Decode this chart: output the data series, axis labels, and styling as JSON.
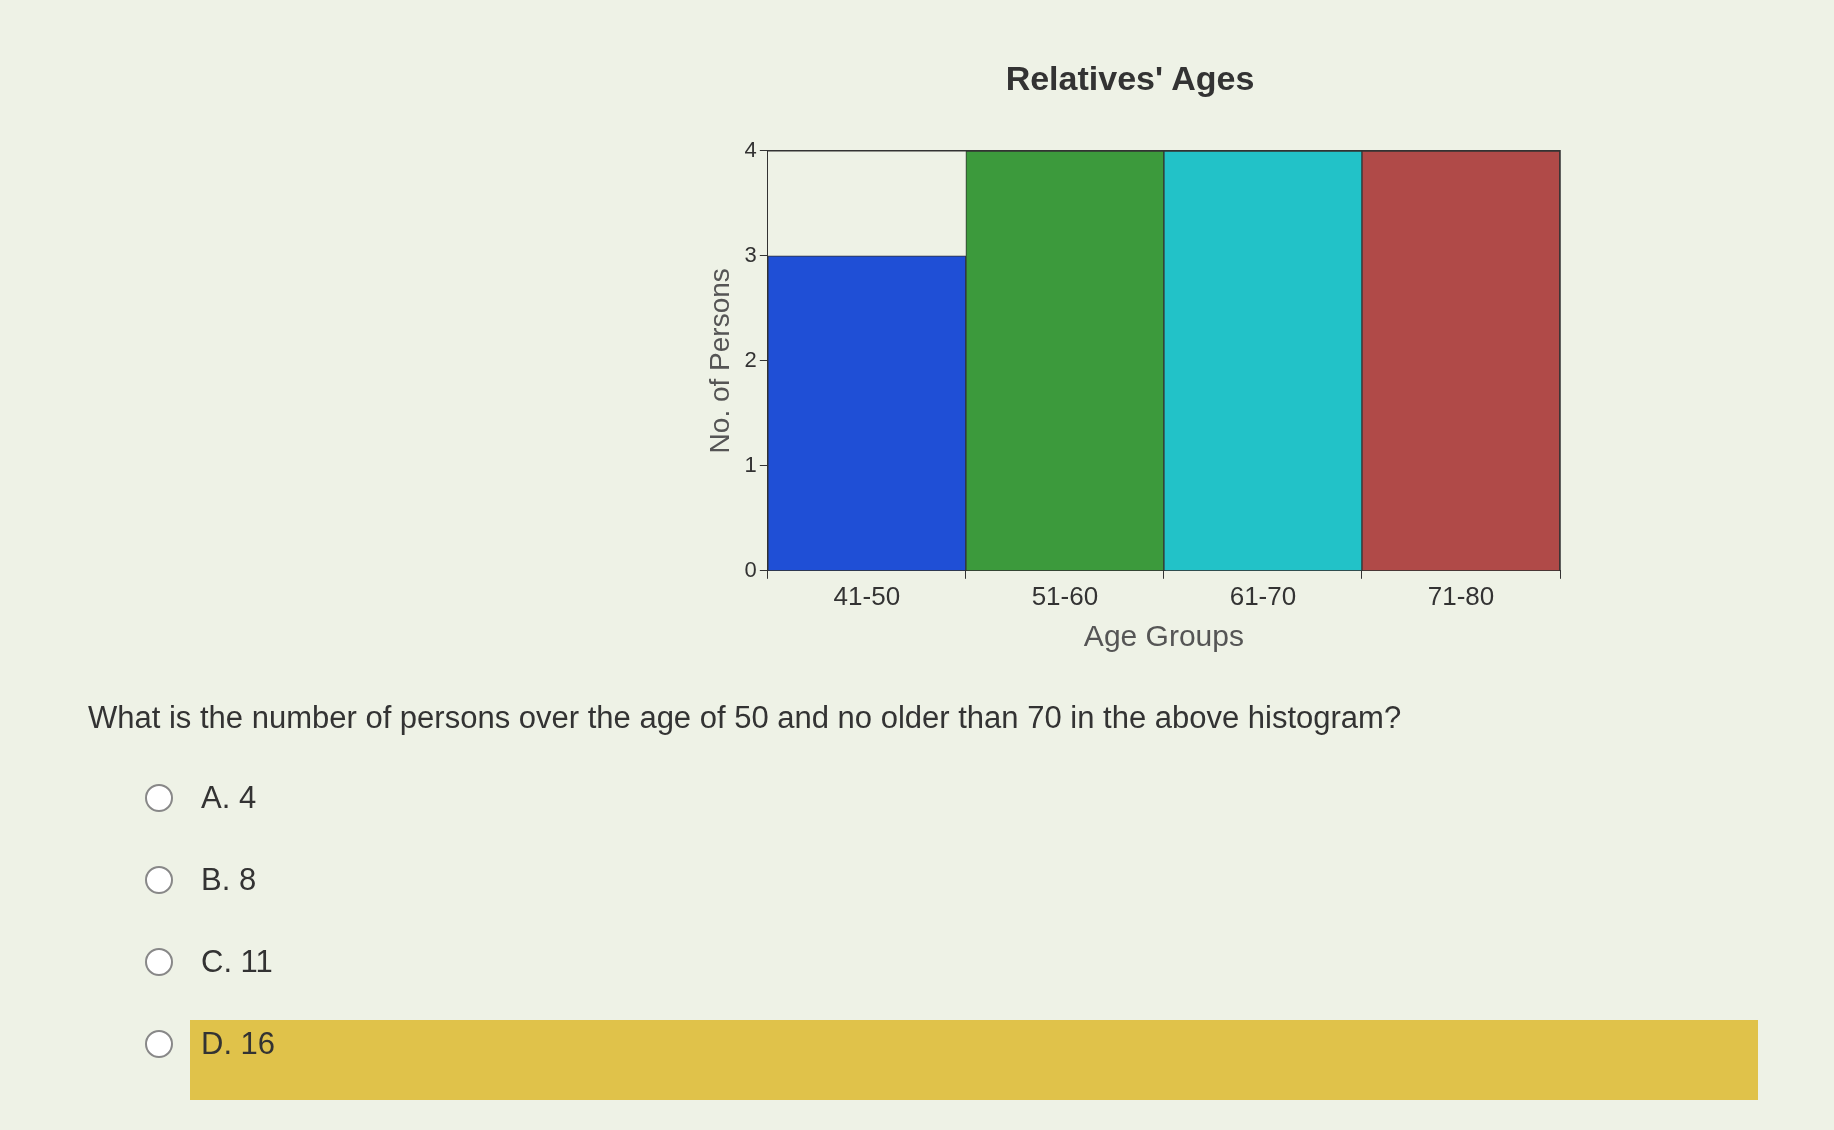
{
  "chart_data": {
    "type": "bar",
    "title": "Relatives' Ages",
    "xlabel": "Age Groups",
    "ylabel": "No. of Persons",
    "categories": [
      "41-50",
      "51-60",
      "61-70",
      "71-80"
    ],
    "values": [
      3,
      4,
      4,
      4
    ],
    "colors": [
      "#1f4fd6",
      "#3c9a3c",
      "#22c2c8",
      "#b04a48"
    ],
    "ylim": [
      0,
      4
    ],
    "yticks": [
      0,
      1,
      2,
      3,
      4
    ],
    "grid": false,
    "legend": false,
    "annotations": [
      "What is the number of persons over the age of 50 and no older than 70 in the above histogram?",
      "A.  4",
      "B.  8",
      "C.  11",
      "D.  16"
    ]
  }
}
